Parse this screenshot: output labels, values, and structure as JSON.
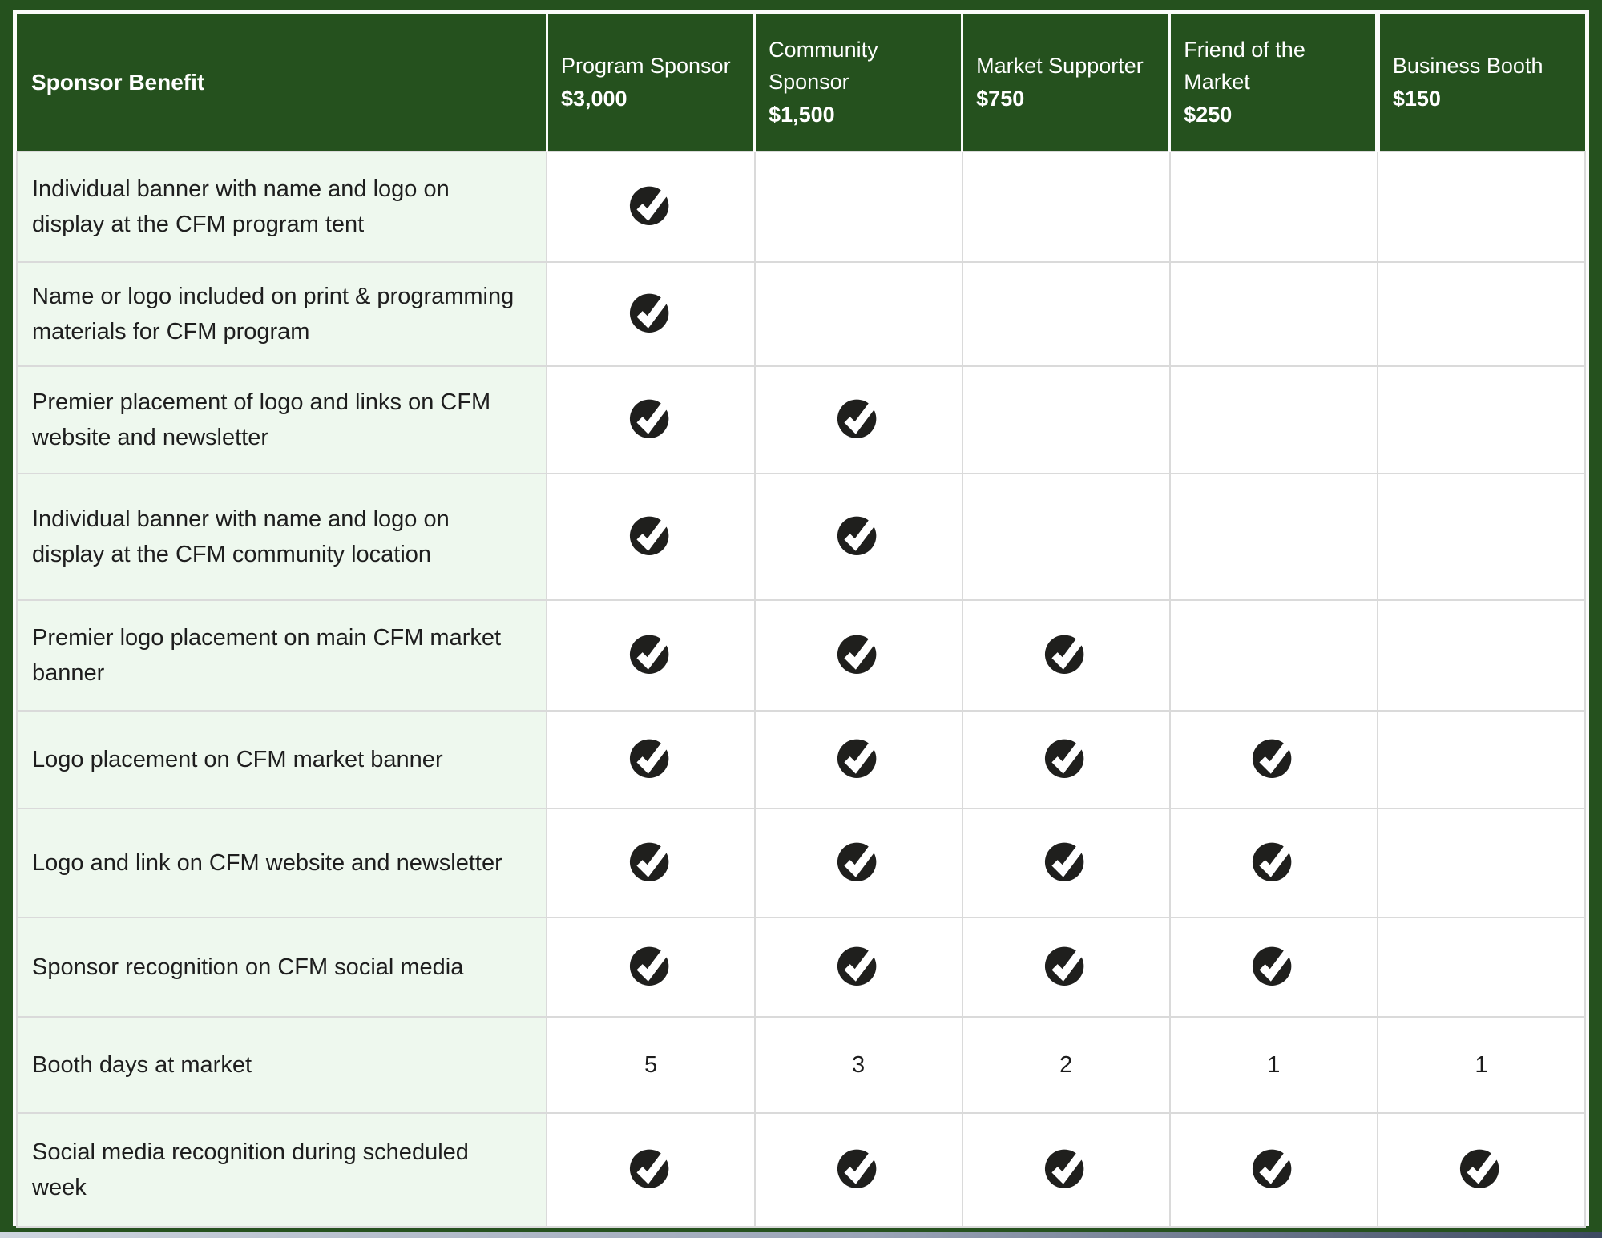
{
  "table": {
    "benefit_header": "Sponsor Benefit",
    "tiers": [
      {
        "name": "Program Sponsor",
        "price": "$3,000"
      },
      {
        "name": "Community Sponsor",
        "price": "$1,500"
      },
      {
        "name": "Market Supporter",
        "price": "$750"
      },
      {
        "name": "Friend of the Market",
        "price": "$250"
      },
      {
        "name": "Business Booth",
        "price": "$150"
      }
    ],
    "rows": [
      {
        "benefit": "Individual banner with name and logo on display at the CFM program tent",
        "cells": [
          "check",
          "",
          "",
          "",
          ""
        ]
      },
      {
        "benefit": "Name or logo included on print & programming materials for CFM program",
        "cells": [
          "check",
          "",
          "",
          "",
          ""
        ]
      },
      {
        "benefit": "Premier placement of logo and links on CFM website and newsletter",
        "cells": [
          "check",
          "check",
          "",
          "",
          ""
        ]
      },
      {
        "benefit": "Individual banner with name and logo on display at the CFM community location",
        "cells": [
          "check",
          "check",
          "",
          "",
          ""
        ]
      },
      {
        "benefit": "Premier logo placement on main CFM market banner",
        "cells": [
          "check",
          "check",
          "check",
          "",
          ""
        ]
      },
      {
        "benefit": "Logo placement on CFM market banner",
        "cells": [
          "check",
          "check",
          "check",
          "check",
          ""
        ]
      },
      {
        "benefit": "Logo and link on CFM website and newsletter",
        "cells": [
          "check",
          "check",
          "check",
          "check",
          ""
        ]
      },
      {
        "benefit": "Sponsor recognition on CFM social media",
        "cells": [
          "check",
          "check",
          "check",
          "check",
          ""
        ]
      },
      {
        "benefit": "Booth days at market",
        "cells": [
          "5",
          "3",
          "2",
          "1",
          "1"
        ]
      },
      {
        "benefit": "Social media recognition during scheduled week",
        "cells": [
          "check",
          "check",
          "check",
          "check",
          "check"
        ]
      }
    ]
  },
  "colors": {
    "header_green": "#25511e",
    "row_label_mint": "#eef8ee",
    "grid_gray": "#dadada",
    "check_black": "#1f1f1d",
    "frame_white": "#fbfbfb"
  }
}
